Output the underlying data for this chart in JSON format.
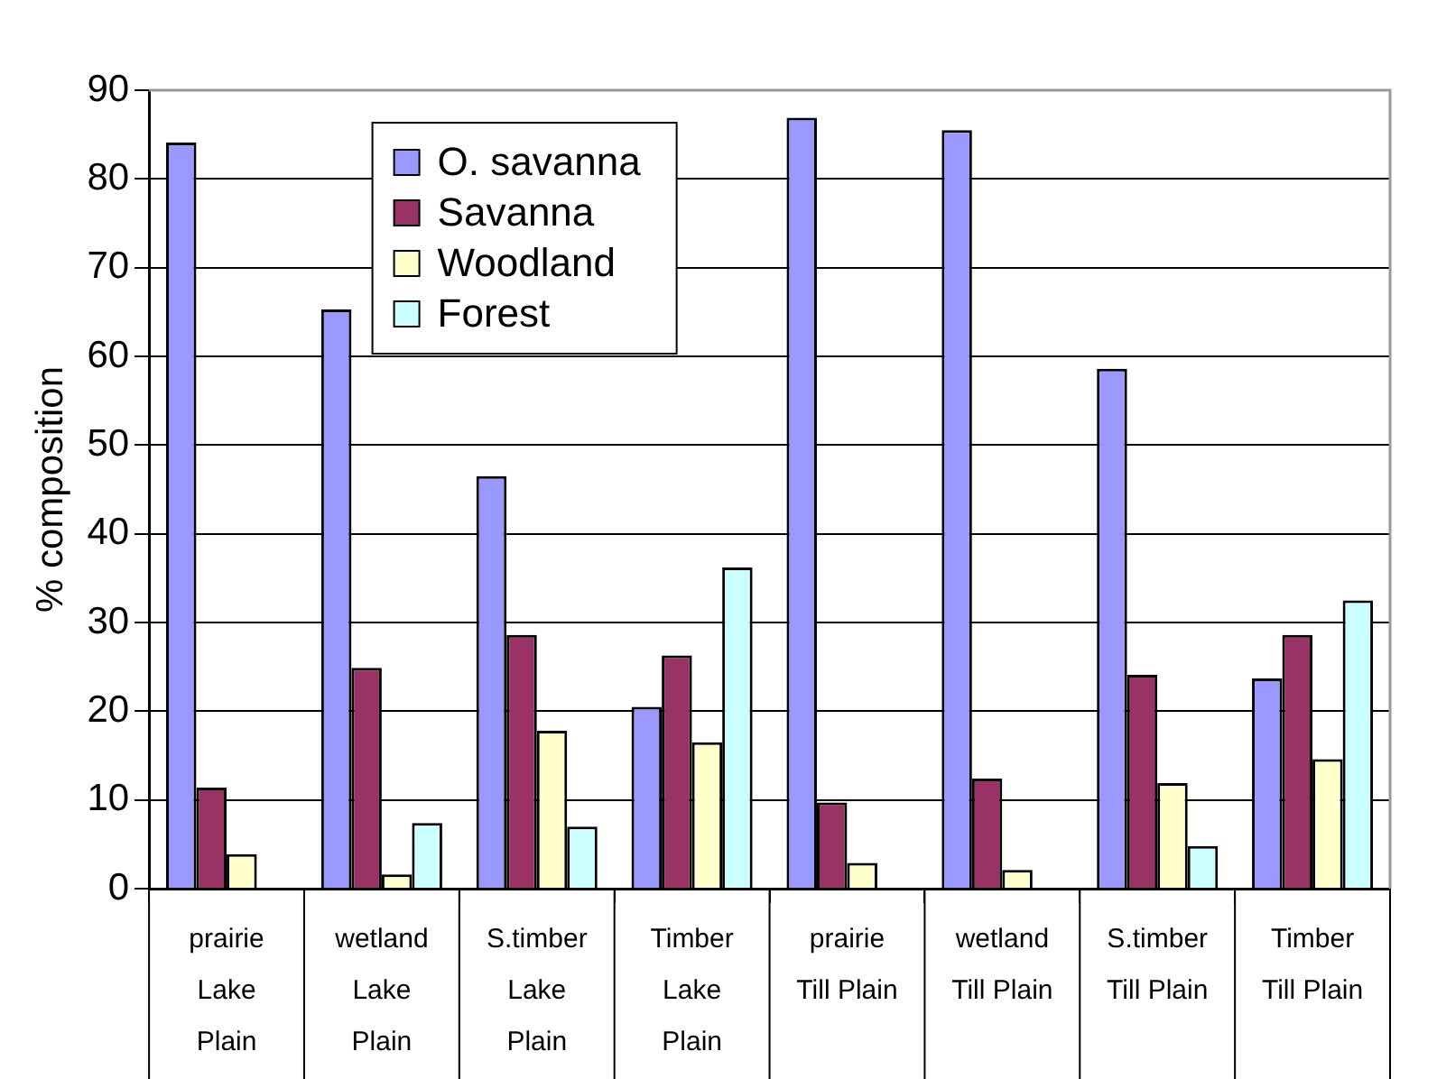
{
  "chart_data": {
    "type": "bar",
    "ylabel": "% composition",
    "categories": [
      "prairie\nLake\nPlain",
      "wetland\nLake\nPlain",
      "S.timber\nLake\nPlain",
      "Timber\nLake\nPlain",
      "prairie\nTill Plain",
      "wetland\nTill Plain",
      "S.timber\nTill Plain",
      "Timber\nTill Plain"
    ],
    "series": [
      {
        "name": "O. savanna",
        "color": "#9999ff",
        "values": [
          84.1,
          65.3,
          46.5,
          20.5,
          86.9,
          85.5,
          58.6,
          23.7
        ]
      },
      {
        "name": "Savanna",
        "color": "#993366",
        "values": [
          11.4,
          24.9,
          28.6,
          26.3,
          9.7,
          12.4,
          24.1,
          28.6
        ]
      },
      {
        "name": "Woodland",
        "color": "#ffffcc",
        "values": [
          3.9,
          1.6,
          17.8,
          16.5,
          2.9,
          2.1,
          11.9,
          14.6
        ]
      },
      {
        "name": "Forest",
        "color": "#ccffff",
        "values": [
          0,
          7.4,
          7.0,
          36.2,
          0,
          0,
          4.8,
          32.5
        ]
      }
    ],
    "ylim": [
      0,
      90
    ],
    "yticks": [
      0,
      10,
      20,
      30,
      40,
      50,
      60,
      70,
      80,
      90
    ],
    "grid": "y",
    "legend": "top left"
  }
}
